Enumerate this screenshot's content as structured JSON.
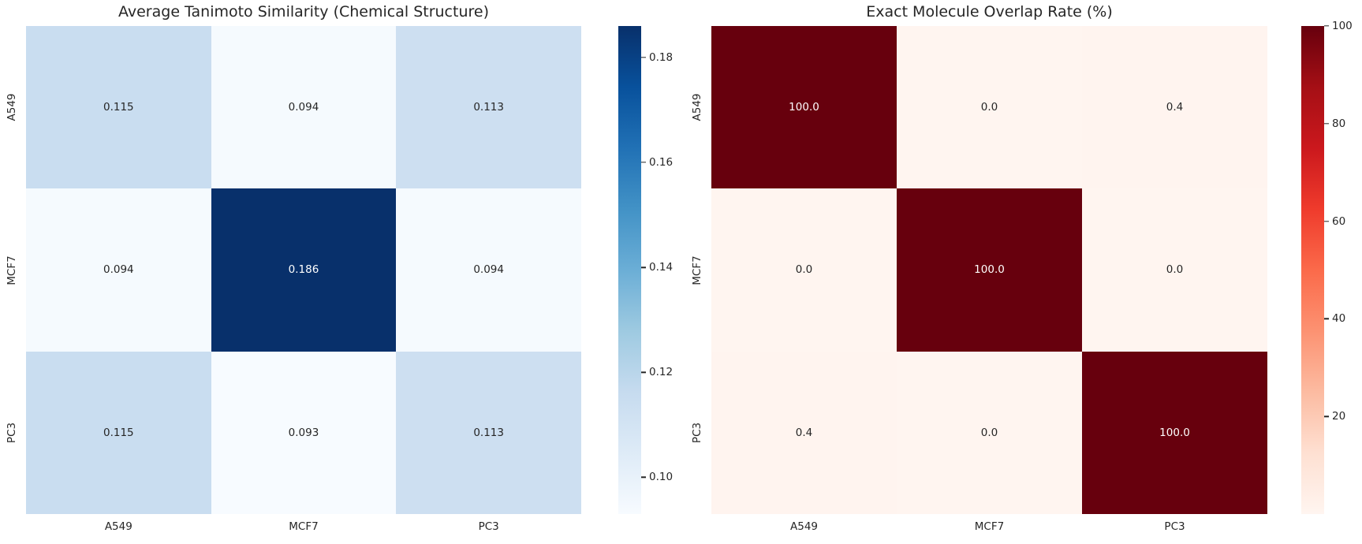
{
  "figure": {
    "background": "#ffffff",
    "text_color": "#262626",
    "annot_light_text_color": "#ffffff"
  },
  "colormaps": {
    "Blues": [
      "#f7fbff",
      "#deebf7",
      "#c6dbef",
      "#9ecae1",
      "#6baed6",
      "#4292c6",
      "#2171b5",
      "#08519c",
      "#08306b"
    ],
    "Reds": [
      "#fff5f0",
      "#fee0d2",
      "#fcbba1",
      "#fc9272",
      "#fb6a4a",
      "#ef3b2c",
      "#cb181d",
      "#a50f15",
      "#67000d"
    ]
  },
  "chart_data": [
    {
      "type": "heatmap",
      "title": "Average Tanimoto Similarity (Chemical Structure)",
      "x_categories": [
        "A549",
        "MCF7",
        "PC3"
      ],
      "y_categories": [
        "A549",
        "MCF7",
        "PC3"
      ],
      "values": [
        [
          0.115,
          0.094,
          0.113
        ],
        [
          0.094,
          0.186,
          0.094
        ],
        [
          0.115,
          0.093,
          0.113
        ]
      ],
      "cell_labels": [
        [
          "0.115",
          "0.094",
          "0.113"
        ],
        [
          "0.094",
          "0.186",
          "0.094"
        ],
        [
          "0.115",
          "0.093",
          "0.113"
        ]
      ],
      "colormap": "Blues",
      "vmin": 0.093,
      "vmax": 0.186,
      "colorbar_position": "right",
      "grid": false,
      "colorbar_ticks": [
        {
          "value": 0.18,
          "label": "0.18"
        },
        {
          "value": 0.16,
          "label": "0.16"
        },
        {
          "value": 0.14,
          "label": "0.14"
        },
        {
          "value": 0.12,
          "label": "0.12"
        },
        {
          "value": 0.1,
          "label": "0.10"
        }
      ]
    },
    {
      "type": "heatmap",
      "title": "Exact Molecule Overlap Rate (%)",
      "x_categories": [
        "A549",
        "MCF7",
        "PC3"
      ],
      "y_categories": [
        "A549",
        "MCF7",
        "PC3"
      ],
      "values": [
        [
          100.0,
          0.0,
          0.4
        ],
        [
          0.0,
          100.0,
          0.0
        ],
        [
          0.4,
          0.0,
          100.0
        ]
      ],
      "cell_labels": [
        [
          "100.0",
          "0.0",
          "0.4"
        ],
        [
          "0.0",
          "100.0",
          "0.0"
        ],
        [
          "0.4",
          "0.0",
          "100.0"
        ]
      ],
      "colormap": "Reds",
      "vmin": 0,
      "vmax": 100,
      "colorbar_position": "right",
      "grid": false,
      "colorbar_ticks": [
        {
          "value": 100,
          "label": "100"
        },
        {
          "value": 80,
          "label": "80"
        },
        {
          "value": 60,
          "label": "60"
        },
        {
          "value": 40,
          "label": "40"
        },
        {
          "value": 20,
          "label": "20"
        }
      ]
    }
  ]
}
